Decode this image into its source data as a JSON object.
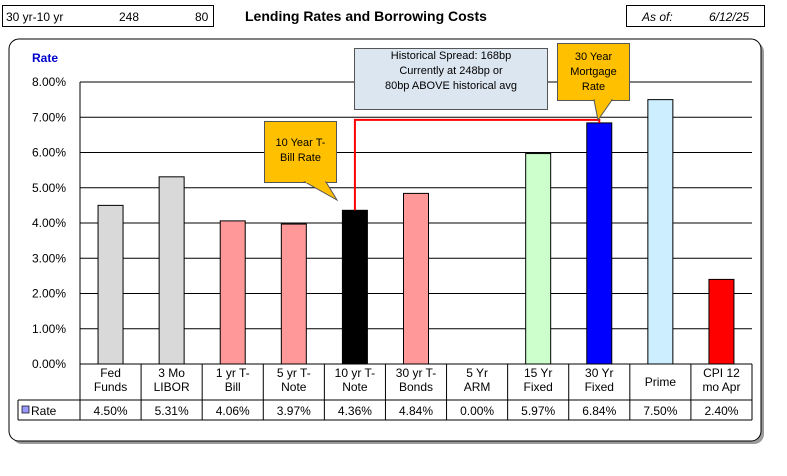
{
  "header": {
    "spread_label": "30 yr-10 yr",
    "spread_current": "248",
    "spread_diff": "80",
    "title": "Lending Rates and Borrowing Costs",
    "as_of_label": "As of:",
    "as_of_date": "6/12/25"
  },
  "chart_data": {
    "type": "bar",
    "ylabel": "Rate",
    "ylim": [
      0,
      8
    ],
    "yticks": [
      "0.00%",
      "1.00%",
      "2.00%",
      "3.00%",
      "4.00%",
      "5.00%",
      "6.00%",
      "7.00%",
      "8.00%"
    ],
    "grid": true,
    "categories": [
      [
        "Fed",
        "Funds"
      ],
      [
        "3 Mo",
        "LIBOR"
      ],
      [
        "1 yr  T-",
        "Bill"
      ],
      [
        "5 yr T-",
        "Note"
      ],
      [
        "10 yr T-",
        "Note"
      ],
      [
        "30 yr T-",
        "Bonds"
      ],
      [
        "5 Yr",
        "ARM"
      ],
      [
        "15 Yr",
        "Fixed"
      ],
      [
        "30 Yr",
        "Fixed"
      ],
      [
        "Prime"
      ],
      [
        "CPI 12",
        "mo Apr"
      ]
    ],
    "series": [
      {
        "name": "Rate",
        "values": [
          4.5,
          5.31,
          4.06,
          3.97,
          4.36,
          4.84,
          0.0,
          5.97,
          6.84,
          7.5,
          2.4
        ],
        "labels": [
          "4.50%",
          "5.31%",
          "4.06%",
          "3.97%",
          "4.36%",
          "4.84%",
          "0.00%",
          "5.97%",
          "6.84%",
          "7.50%",
          "2.40%"
        ],
        "colors": [
          "#d9d9d9",
          "#d9d9d9",
          "#ff9999",
          "#ff9999",
          "#000000",
          "#ff9999",
          "#ff9999",
          "#ccffcc",
          "#0000ff",
          "#cceeff",
          "#ff0000"
        ]
      }
    ],
    "legend_color": "#9999ff"
  },
  "callouts": {
    "spread": [
      "Historical Spread: 168bp",
      "Currently at 248bp  or",
      "80bp ABOVE historical avg"
    ],
    "ten_year": [
      "10 Year T-",
      "Bill Rate"
    ],
    "thirty_year": [
      "30 Year",
      "Mortgage",
      "Rate"
    ]
  },
  "colors": {
    "callout_gold": "#ffc000",
    "callout_blue": "#dce6f1",
    "spread_line": "#ff0000"
  }
}
